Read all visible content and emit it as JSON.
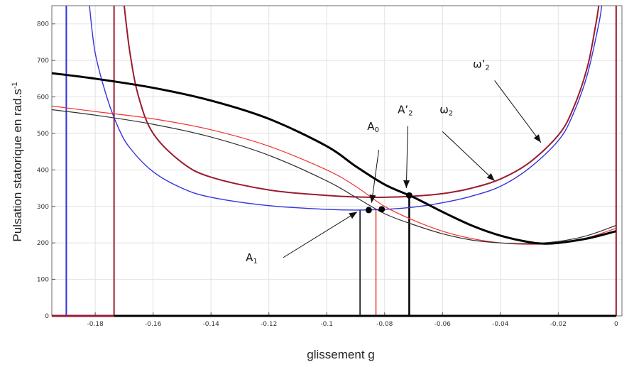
{
  "chart_data": {
    "type": "line",
    "title": "",
    "xlabel": "glissement g",
    "ylabel": "Pulsation statorique en rad.s-1",
    "ylabel_main": "Pulsation statorique en rad.s",
    "ylabel_exp": "-1",
    "xlim": [
      -0.195,
      0.002
    ],
    "ylim": [
      0,
      850
    ],
    "grid": true,
    "x_ticks": [
      -0.18,
      -0.16,
      -0.14,
      -0.12,
      -0.1,
      -0.08,
      -0.06,
      -0.04,
      -0.02,
      0
    ],
    "x_tick_labels": [
      "-0.18",
      "-0.16",
      "-0.14",
      "-0.12",
      "-0.1",
      "-0.08",
      "-0.06",
      "-0.04",
      "-0.02",
      "0"
    ],
    "y_ticks": [
      0,
      100,
      200,
      300,
      400,
      500,
      600,
      700,
      800
    ],
    "y_tick_labels": [
      "0",
      "100",
      "200",
      "300",
      "400",
      "500",
      "600",
      "700",
      "800"
    ],
    "colors": {
      "blue": "#3333dd",
      "darkred": "#9b1b30",
      "red": "#ee3333",
      "black": "#000000",
      "gray": "#2f2f2f",
      "vline": "#9b1b30"
    },
    "series": [
      {
        "color": "#3333dd",
        "width": 1.4,
        "points": [
          [
            -0.182,
            850
          ],
          [
            -0.18,
            720
          ],
          [
            -0.176,
            600
          ],
          [
            -0.172,
            515
          ],
          [
            -0.168,
            460
          ],
          [
            -0.16,
            395
          ],
          [
            -0.15,
            350
          ],
          [
            -0.14,
            325
          ],
          [
            -0.12,
            302
          ],
          [
            -0.1,
            292
          ],
          [
            -0.09,
            290
          ],
          [
            -0.08,
            292
          ],
          [
            -0.07,
            298
          ],
          [
            -0.06,
            310
          ],
          [
            -0.05,
            328
          ],
          [
            -0.04,
            355
          ],
          [
            -0.03,
            405
          ],
          [
            -0.02,
            480
          ],
          [
            -0.015,
            550
          ],
          [
            -0.01,
            660
          ],
          [
            -0.006,
            800
          ],
          [
            -0.005,
            850
          ]
        ]
      },
      {
        "color": "#9b1b30",
        "width": 2.0,
        "points": [
          [
            -0.17,
            850
          ],
          [
            -0.168,
            720
          ],
          [
            -0.165,
            600
          ],
          [
            -0.16,
            500
          ],
          [
            -0.15,
            420
          ],
          [
            -0.14,
            380
          ],
          [
            -0.12,
            345
          ],
          [
            -0.1,
            330
          ],
          [
            -0.09,
            326
          ],
          [
            -0.08,
            325
          ],
          [
            -0.07,
            328
          ],
          [
            -0.06,
            335
          ],
          [
            -0.05,
            350
          ],
          [
            -0.04,
            375
          ],
          [
            -0.03,
            420
          ],
          [
            -0.02,
            495
          ],
          [
            -0.015,
            565
          ],
          [
            -0.01,
            680
          ],
          [
            -0.007,
            800
          ],
          [
            -0.006,
            850
          ]
        ]
      },
      {
        "color": "#ee3333",
        "width": 1.2,
        "points": [
          [
            -0.195,
            575
          ],
          [
            -0.18,
            560
          ],
          [
            -0.16,
            540
          ],
          [
            -0.14,
            510
          ],
          [
            -0.12,
            465
          ],
          [
            -0.1,
            400
          ],
          [
            -0.09,
            355
          ],
          [
            -0.08,
            300
          ],
          [
            -0.07,
            262
          ],
          [
            -0.06,
            232
          ],
          [
            -0.05,
            212
          ],
          [
            -0.04,
            200
          ],
          [
            -0.03,
            196
          ],
          [
            -0.02,
            200
          ],
          [
            -0.01,
            214
          ],
          [
            0,
            240
          ]
        ]
      },
      {
        "color": "#2f2f2f",
        "width": 1.2,
        "points": [
          [
            -0.195,
            565
          ],
          [
            -0.18,
            550
          ],
          [
            -0.16,
            525
          ],
          [
            -0.14,
            490
          ],
          [
            -0.12,
            440
          ],
          [
            -0.1,
            370
          ],
          [
            -0.09,
            325
          ],
          [
            -0.08,
            280
          ],
          [
            -0.07,
            250
          ],
          [
            -0.06,
            225
          ],
          [
            -0.05,
            208
          ],
          [
            -0.04,
            200
          ],
          [
            -0.03,
            198
          ],
          [
            -0.02,
            204
          ],
          [
            -0.01,
            220
          ],
          [
            0,
            248
          ]
        ]
      },
      {
        "color": "#000000",
        "width": 3.0,
        "points": [
          [
            -0.195,
            665
          ],
          [
            -0.18,
            650
          ],
          [
            -0.16,
            625
          ],
          [
            -0.14,
            590
          ],
          [
            -0.12,
            540
          ],
          [
            -0.1,
            465
          ],
          [
            -0.09,
            410
          ],
          [
            -0.08,
            360
          ],
          [
            -0.07,
            325
          ],
          [
            -0.06,
            285
          ],
          [
            -0.05,
            248
          ],
          [
            -0.04,
            220
          ],
          [
            -0.03,
            202
          ],
          [
            -0.025,
            198
          ],
          [
            -0.02,
            200
          ],
          [
            -0.01,
            212
          ],
          [
            0,
            232
          ]
        ]
      }
    ],
    "vertical_lines": [
      {
        "x": -0.19,
        "color": "#3333dd",
        "width": 2
      },
      {
        "x": -0.1735,
        "color": "#9b1b30",
        "width": 2
      },
      {
        "x": -0.0885,
        "color": "#000000",
        "width": 1.5,
        "y_top": 290
      },
      {
        "x": -0.083,
        "color": "#ee3333",
        "width": 1.5,
        "y_top": 290
      },
      {
        "x": -0.0715,
        "color": "#000000",
        "width": 2.5,
        "y_top": 330
      },
      {
        "x": 0,
        "color": "#9b1b30",
        "width": 2
      }
    ],
    "baseline": [
      {
        "x1": -0.195,
        "x2": -0.1735,
        "color": "#9b1b30",
        "width": 3
      },
      {
        "x1": -0.1735,
        "x2": 0,
        "color": "#000000",
        "width": 3
      }
    ],
    "points": [
      {
        "x": -0.0855,
        "y": 290
      },
      {
        "x": -0.081,
        "y": 292
      },
      {
        "x": -0.0715,
        "y": 330
      }
    ],
    "annotations": [
      {
        "main": "A",
        "sub": "1",
        "x": -0.128,
        "y": 150
      },
      {
        "main": "A",
        "sub": "0",
        "x": -0.086,
        "y": 510
      },
      {
        "main": "A’",
        "sub": "2",
        "x": -0.0755,
        "y": 555
      },
      {
        "main": "ω",
        "sub": "2",
        "x": -0.061,
        "y": 555
      },
      {
        "main": "ω’",
        "sub": "2",
        "x": -0.0495,
        "y": 680
      }
    ],
    "arrows": [
      {
        "from": [
          -0.115,
          160
        ],
        "to": [
          -0.0895,
          285
        ]
      },
      {
        "from": [
          -0.082,
          455
        ],
        "to": [
          -0.0845,
          310
        ]
      },
      {
        "from": [
          -0.072,
          520
        ],
        "to": [
          -0.0725,
          350
        ]
      },
      {
        "from": [
          -0.06,
          505
        ],
        "to": [
          -0.042,
          370
        ]
      },
      {
        "from": [
          -0.042,
          645
        ],
        "to": [
          -0.026,
          475
        ]
      }
    ]
  }
}
